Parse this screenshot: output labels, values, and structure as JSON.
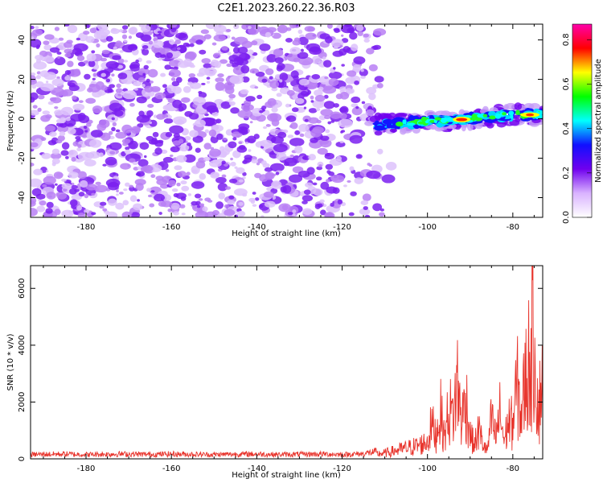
{
  "figure_title": "C2E1.2023.260.22.36.R03",
  "chart_data": [
    {
      "type": "heatmap",
      "xlabel": "Height of straight line (km)",
      "ylabel": "Frequency (Hz)",
      "xlim": [
        -193,
        -73
      ],
      "ylim": [
        -50,
        48
      ],
      "xticks": [
        -180,
        -160,
        -140,
        -120,
        -100,
        -80
      ],
      "yticks": [
        -40,
        -20,
        0,
        20,
        40
      ],
      "colorbar": {
        "label": "Normalized spectral amplitude",
        "range": [
          0.0,
          0.87
        ],
        "ticks": [
          "0.0",
          "0.2",
          "0.4",
          "0.6",
          "0.8"
        ],
        "colors": [
          "#ffffff",
          "#d9b3ff",
          "#7000ee",
          "#1010ff",
          "#00ffff",
          "#00ff00",
          "#ffff00",
          "#ff0000",
          "#ff00aa"
        ]
      },
      "noise_region": {
        "x": [
          -193,
          -110
        ],
        "y": [
          -50,
          48
        ],
        "amplitude": 0.15
      },
      "signal_track": {
        "x": [
          -112,
          -105,
          -100,
          -95,
          -90,
          -85,
          -80,
          -75
        ],
        "y": [
          -3,
          -2,
          -1,
          -1,
          0,
          1,
          2,
          2
        ],
        "peak_x": -92,
        "peak_amplitude": 0.87
      }
    },
    {
      "type": "line",
      "xlabel": "Height of straight line (km)",
      "ylabel": "SNR (10 * v/v)",
      "xlim": [
        -193,
        -73
      ],
      "ylim": [
        0,
        6800
      ],
      "xticks": [
        -180,
        -160,
        -140,
        -120,
        -100,
        -80
      ],
      "yticks": [
        0,
        2000,
        4000,
        6000
      ],
      "series": [
        {
          "color": "#e8342c",
          "x": [
            -193,
            -190,
            -185,
            -180,
            -175,
            -170,
            -165,
            -160,
            -155,
            -150,
            -145,
            -140,
            -135,
            -130,
            -125,
            -120,
            -115,
            -112,
            -110,
            -108,
            -106,
            -104,
            -102,
            -100,
            -99,
            -98,
            -97,
            -96,
            -95,
            -94,
            -93,
            -92,
            -91,
            -90,
            -89,
            -88,
            -87,
            -86,
            -85,
            -84,
            -83,
            -82,
            -81,
            -80,
            -79,
            -78,
            -77,
            -76,
            -75,
            -74,
            -73
          ],
          "y": [
            150,
            160,
            170,
            150,
            165,
            170,
            155,
            170,
            160,
            150,
            165,
            170,
            150,
            160,
            170,
            150,
            180,
            250,
            300,
            400,
            500,
            600,
            700,
            900,
            1800,
            1200,
            2500,
            1100,
            2600,
            2200,
            4000,
            1900,
            3200,
            1300,
            700,
            1500,
            800,
            400,
            2000,
            1100,
            2400,
            900,
            2000,
            1800,
            3800,
            2300,
            4200,
            5200,
            6800,
            2300,
            4700
          ]
        }
      ]
    }
  ]
}
